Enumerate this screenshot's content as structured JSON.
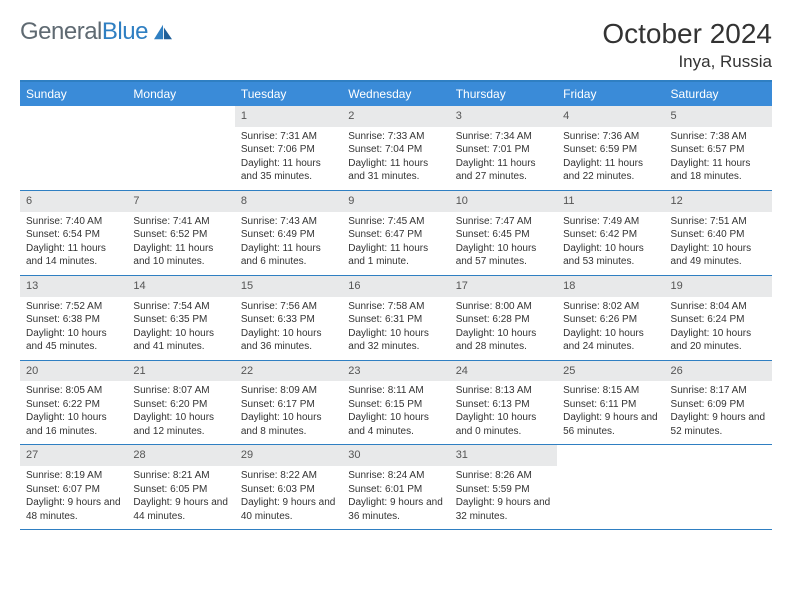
{
  "logo": {
    "text1": "General",
    "text2": "Blue"
  },
  "header": {
    "month_title": "October 2024",
    "location": "Inya, Russia"
  },
  "colors": {
    "accent": "#3a8bd8",
    "rule": "#2f7fc2",
    "daybar": "#e8e9ea",
    "text": "#333333",
    "logo_gray": "#5f6a72"
  },
  "days_of_week": [
    "Sunday",
    "Monday",
    "Tuesday",
    "Wednesday",
    "Thursday",
    "Friday",
    "Saturday"
  ],
  "weeks": [
    [
      null,
      null,
      {
        "n": "1",
        "sr": "Sunrise: 7:31 AM",
        "ss": "Sunset: 7:06 PM",
        "dl": "Daylight: 11 hours and 35 minutes."
      },
      {
        "n": "2",
        "sr": "Sunrise: 7:33 AM",
        "ss": "Sunset: 7:04 PM",
        "dl": "Daylight: 11 hours and 31 minutes."
      },
      {
        "n": "3",
        "sr": "Sunrise: 7:34 AM",
        "ss": "Sunset: 7:01 PM",
        "dl": "Daylight: 11 hours and 27 minutes."
      },
      {
        "n": "4",
        "sr": "Sunrise: 7:36 AM",
        "ss": "Sunset: 6:59 PM",
        "dl": "Daylight: 11 hours and 22 minutes."
      },
      {
        "n": "5",
        "sr": "Sunrise: 7:38 AM",
        "ss": "Sunset: 6:57 PM",
        "dl": "Daylight: 11 hours and 18 minutes."
      }
    ],
    [
      {
        "n": "6",
        "sr": "Sunrise: 7:40 AM",
        "ss": "Sunset: 6:54 PM",
        "dl": "Daylight: 11 hours and 14 minutes."
      },
      {
        "n": "7",
        "sr": "Sunrise: 7:41 AM",
        "ss": "Sunset: 6:52 PM",
        "dl": "Daylight: 11 hours and 10 minutes."
      },
      {
        "n": "8",
        "sr": "Sunrise: 7:43 AM",
        "ss": "Sunset: 6:49 PM",
        "dl": "Daylight: 11 hours and 6 minutes."
      },
      {
        "n": "9",
        "sr": "Sunrise: 7:45 AM",
        "ss": "Sunset: 6:47 PM",
        "dl": "Daylight: 11 hours and 1 minute."
      },
      {
        "n": "10",
        "sr": "Sunrise: 7:47 AM",
        "ss": "Sunset: 6:45 PM",
        "dl": "Daylight: 10 hours and 57 minutes."
      },
      {
        "n": "11",
        "sr": "Sunrise: 7:49 AM",
        "ss": "Sunset: 6:42 PM",
        "dl": "Daylight: 10 hours and 53 minutes."
      },
      {
        "n": "12",
        "sr": "Sunrise: 7:51 AM",
        "ss": "Sunset: 6:40 PM",
        "dl": "Daylight: 10 hours and 49 minutes."
      }
    ],
    [
      {
        "n": "13",
        "sr": "Sunrise: 7:52 AM",
        "ss": "Sunset: 6:38 PM",
        "dl": "Daylight: 10 hours and 45 minutes."
      },
      {
        "n": "14",
        "sr": "Sunrise: 7:54 AM",
        "ss": "Sunset: 6:35 PM",
        "dl": "Daylight: 10 hours and 41 minutes."
      },
      {
        "n": "15",
        "sr": "Sunrise: 7:56 AM",
        "ss": "Sunset: 6:33 PM",
        "dl": "Daylight: 10 hours and 36 minutes."
      },
      {
        "n": "16",
        "sr": "Sunrise: 7:58 AM",
        "ss": "Sunset: 6:31 PM",
        "dl": "Daylight: 10 hours and 32 minutes."
      },
      {
        "n": "17",
        "sr": "Sunrise: 8:00 AM",
        "ss": "Sunset: 6:28 PM",
        "dl": "Daylight: 10 hours and 28 minutes."
      },
      {
        "n": "18",
        "sr": "Sunrise: 8:02 AM",
        "ss": "Sunset: 6:26 PM",
        "dl": "Daylight: 10 hours and 24 minutes."
      },
      {
        "n": "19",
        "sr": "Sunrise: 8:04 AM",
        "ss": "Sunset: 6:24 PM",
        "dl": "Daylight: 10 hours and 20 minutes."
      }
    ],
    [
      {
        "n": "20",
        "sr": "Sunrise: 8:05 AM",
        "ss": "Sunset: 6:22 PM",
        "dl": "Daylight: 10 hours and 16 minutes."
      },
      {
        "n": "21",
        "sr": "Sunrise: 8:07 AM",
        "ss": "Sunset: 6:20 PM",
        "dl": "Daylight: 10 hours and 12 minutes."
      },
      {
        "n": "22",
        "sr": "Sunrise: 8:09 AM",
        "ss": "Sunset: 6:17 PM",
        "dl": "Daylight: 10 hours and 8 minutes."
      },
      {
        "n": "23",
        "sr": "Sunrise: 8:11 AM",
        "ss": "Sunset: 6:15 PM",
        "dl": "Daylight: 10 hours and 4 minutes."
      },
      {
        "n": "24",
        "sr": "Sunrise: 8:13 AM",
        "ss": "Sunset: 6:13 PM",
        "dl": "Daylight: 10 hours and 0 minutes."
      },
      {
        "n": "25",
        "sr": "Sunrise: 8:15 AM",
        "ss": "Sunset: 6:11 PM",
        "dl": "Daylight: 9 hours and 56 minutes."
      },
      {
        "n": "26",
        "sr": "Sunrise: 8:17 AM",
        "ss": "Sunset: 6:09 PM",
        "dl": "Daylight: 9 hours and 52 minutes."
      }
    ],
    [
      {
        "n": "27",
        "sr": "Sunrise: 8:19 AM",
        "ss": "Sunset: 6:07 PM",
        "dl": "Daylight: 9 hours and 48 minutes."
      },
      {
        "n": "28",
        "sr": "Sunrise: 8:21 AM",
        "ss": "Sunset: 6:05 PM",
        "dl": "Daylight: 9 hours and 44 minutes."
      },
      {
        "n": "29",
        "sr": "Sunrise: 8:22 AM",
        "ss": "Sunset: 6:03 PM",
        "dl": "Daylight: 9 hours and 40 minutes."
      },
      {
        "n": "30",
        "sr": "Sunrise: 8:24 AM",
        "ss": "Sunset: 6:01 PM",
        "dl": "Daylight: 9 hours and 36 minutes."
      },
      {
        "n": "31",
        "sr": "Sunrise: 8:26 AM",
        "ss": "Sunset: 5:59 PM",
        "dl": "Daylight: 9 hours and 32 minutes."
      },
      null,
      null
    ]
  ]
}
